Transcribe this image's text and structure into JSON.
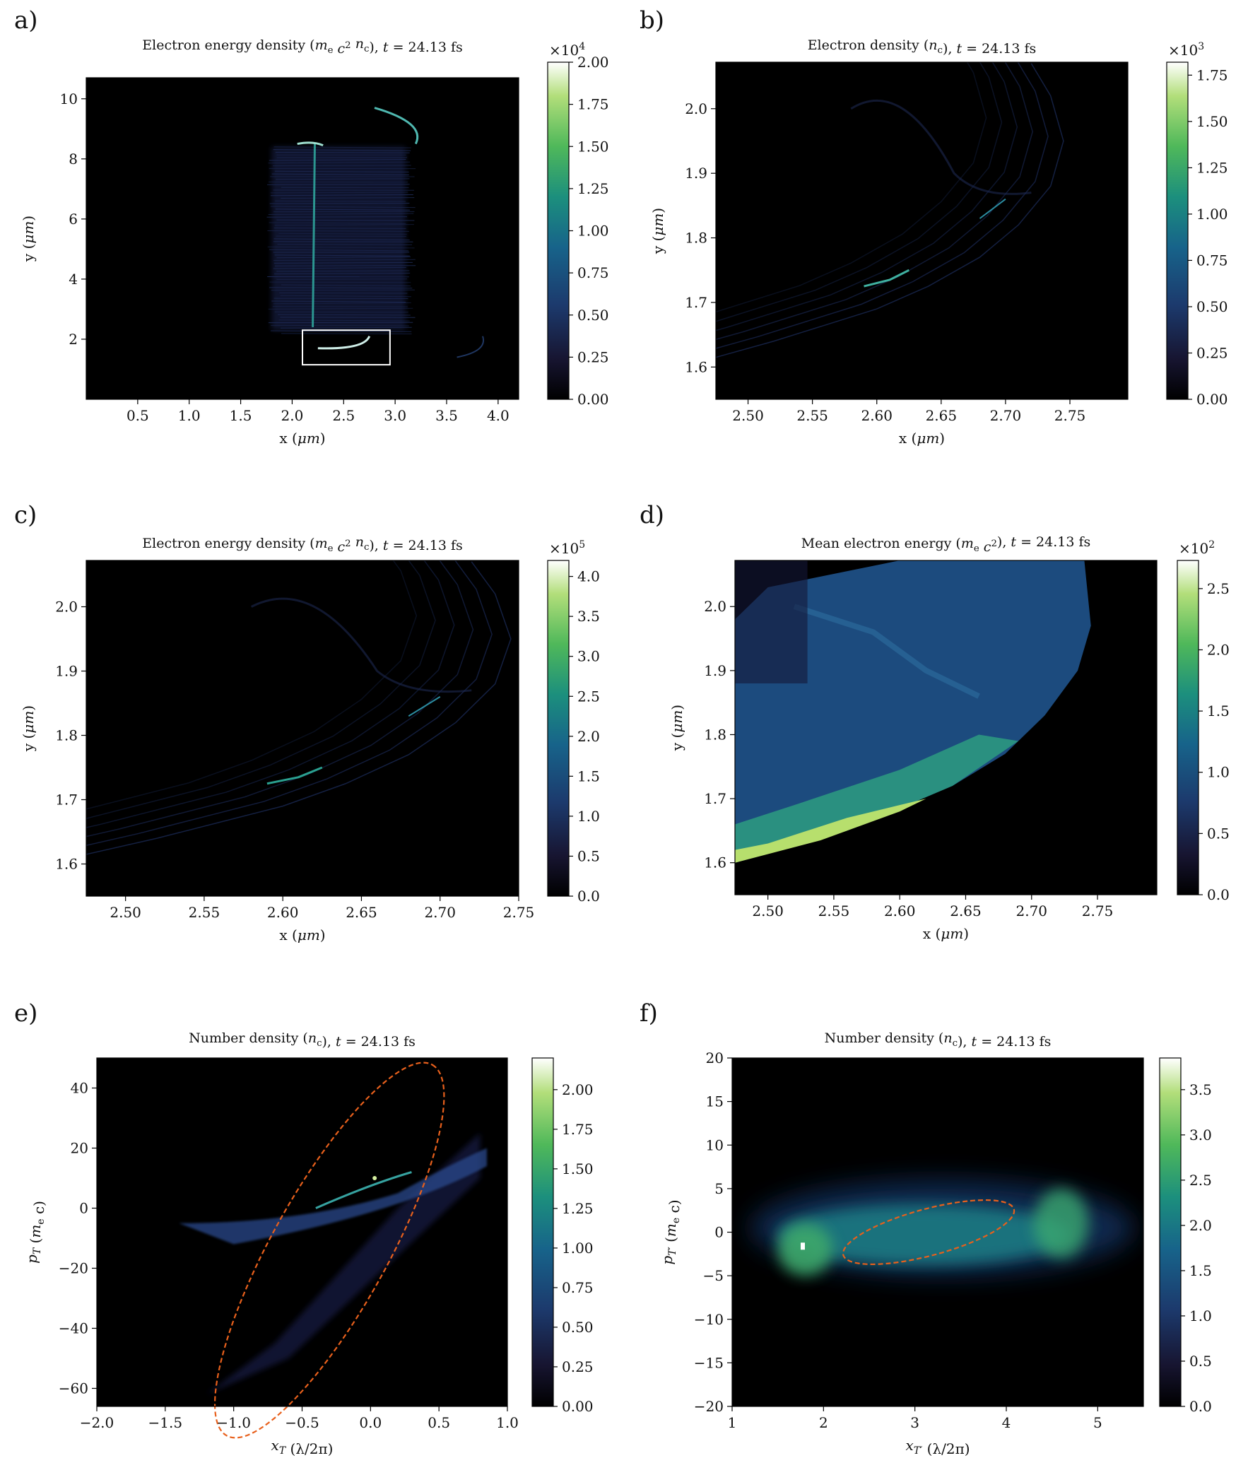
{
  "chart_data": [
    {
      "panel": "a)",
      "type": "heatmap",
      "title": "Electron energy density (m_e c^2 n_c), t = 24.13 fs",
      "xlabel": "x (μm)",
      "ylabel": "y (μm)",
      "xlim": [
        0,
        4.2
      ],
      "ylim": [
        0,
        10.7
      ],
      "xticks": [
        0.5,
        1.0,
        1.5,
        2.0,
        2.5,
        3.0,
        3.5,
        4.0
      ],
      "yticks": [
        2,
        4,
        6,
        8,
        10
      ],
      "colorbar": {
        "min": 0,
        "max": 2.0,
        "ticks": [
          0.0,
          0.25,
          0.5,
          0.75,
          1.0,
          1.25,
          1.5,
          1.75,
          2.0
        ],
        "multiplier": "×10^4"
      },
      "colormap": "cubehelix-green",
      "inset_box": {
        "x": [
          2.1,
          2.95
        ],
        "y": [
          1.15,
          2.3
        ]
      }
    },
    {
      "panel": "b)",
      "type": "heatmap",
      "title": "Electron density (n_c), t = 24.13 fs",
      "xlabel": "x (μm)",
      "ylabel": "y (μm)",
      "xlim": [
        2.475,
        2.795
      ],
      "ylim": [
        1.55,
        2.072
      ],
      "xticks": [
        2.5,
        2.55,
        2.6,
        2.65,
        2.7,
        2.75
      ],
      "yticks": [
        1.6,
        1.7,
        1.8,
        1.9,
        2.0
      ],
      "colorbar": {
        "min": 0,
        "max": 1.82,
        "ticks": [
          0.0,
          0.25,
          0.5,
          0.75,
          1.0,
          1.25,
          1.5,
          1.75
        ],
        "multiplier": "×10^3"
      },
      "colormap": "cubehelix-green"
    },
    {
      "panel": "c)",
      "type": "heatmap",
      "title": "Electron energy density (m_e c^2 n_c), t = 24.13 fs",
      "xlabel": "x (μm)",
      "ylabel": "y (μm)",
      "xlim": [
        2.475,
        2.75
      ],
      "ylim": [
        1.55,
        2.072
      ],
      "xticks": [
        2.5,
        2.55,
        2.6,
        2.65,
        2.7,
        2.75
      ],
      "yticks": [
        1.6,
        1.7,
        1.8,
        1.9,
        2.0
      ],
      "colorbar": {
        "min": 0,
        "max": 4.2,
        "ticks": [
          0.0,
          0.5,
          1.0,
          1.5,
          2.0,
          2.5,
          3.0,
          3.5,
          4.0
        ],
        "multiplier": "×10^5"
      },
      "colormap": "cubehelix-green"
    },
    {
      "panel": "d)",
      "type": "heatmap",
      "title": "Mean electron energy (m_e c^2), t = 24.13 fs",
      "xlabel": "x (μm)",
      "ylabel": "y (μm)",
      "xlim": [
        2.475,
        2.795
      ],
      "ylim": [
        1.55,
        2.072
      ],
      "xticks": [
        2.5,
        2.55,
        2.6,
        2.65,
        2.7,
        2.75
      ],
      "yticks": [
        1.6,
        1.7,
        1.8,
        1.9,
        2.0
      ],
      "colorbar": {
        "min": 0,
        "max": 2.73,
        "ticks": [
          0.0,
          0.5,
          1.0,
          1.5,
          2.0,
          2.5
        ],
        "multiplier": "×10^2"
      },
      "colormap": "cubehelix-green"
    },
    {
      "panel": "e)",
      "type": "heatmap",
      "title": "Number density (n_c), t = 24.13 fs",
      "xlabel": "x_T (λ/2π)",
      "ylabel": "p_T (m_e c)",
      "xlim": [
        -2.0,
        1.0
      ],
      "ylim": [
        -66,
        50
      ],
      "xticks": [
        -2.0,
        -1.5,
        -1.0,
        -0.5,
        0.0,
        0.5,
        1.0
      ],
      "yticks": [
        -60,
        -40,
        -20,
        0,
        20,
        40
      ],
      "colorbar": {
        "min": 0,
        "max": 2.2,
        "ticks": [
          0.0,
          0.25,
          0.5,
          0.75,
          1.0,
          1.25,
          1.5,
          1.75,
          2.0
        ],
        "multiplier": ""
      },
      "colormap": "cubehelix-green",
      "ellipse": {
        "center": [
          -0.3,
          -14
        ],
        "color": "#e8601c",
        "style": "dashed"
      }
    },
    {
      "panel": "f)",
      "type": "heatmap",
      "title": "Number density (n_c), t = 24.13 fs",
      "xlabel": "x_T' (λ/2π)",
      "ylabel": "p_T' (m_e c)",
      "xlim": [
        1,
        5.5
      ],
      "ylim": [
        -20,
        20
      ],
      "xticks": [
        1,
        2,
        3,
        4,
        5
      ],
      "yticks": [
        -20,
        -15,
        -10,
        -5,
        0,
        5,
        10,
        15,
        20
      ],
      "colorbar": {
        "min": 0,
        "max": 3.85,
        "ticks": [
          0.0,
          0.5,
          1.0,
          1.5,
          2.0,
          2.5,
          3.0,
          3.5
        ],
        "multiplier": ""
      },
      "colormap": "cubehelix-green",
      "ellipse": {
        "center": [
          3.15,
          0
        ],
        "color": "#e8601c",
        "style": "dashed"
      }
    }
  ]
}
